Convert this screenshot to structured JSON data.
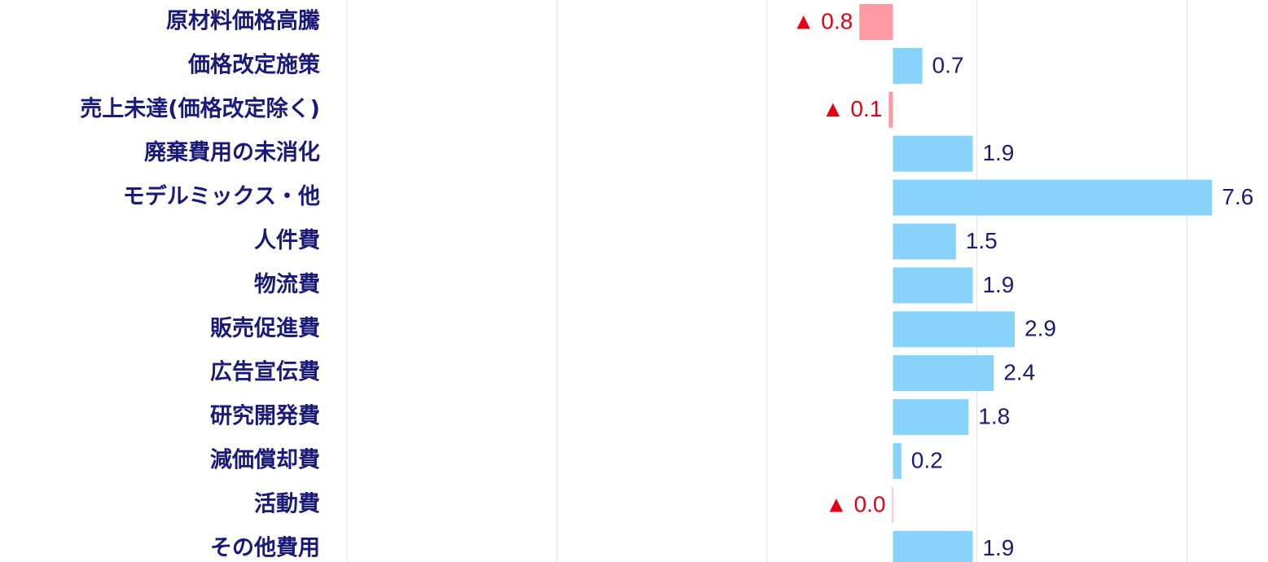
{
  "chart_data": {
    "type": "barh",
    "categories": [
      "原材料価格高騰",
      "価格改定施策",
      "売上未達(価格改定除く)",
      "廃棄費用の未消化",
      "モデルミックス・他",
      "人件費",
      "物流費",
      "販売促進費",
      "広告宣伝費",
      "研究開発費",
      "減価償却費",
      "活動費",
      "その他費用"
    ],
    "values": [
      -0.8,
      0.7,
      -0.1,
      1.9,
      7.6,
      1.5,
      1.9,
      2.9,
      2.4,
      1.8,
      0.2,
      -0.02,
      1.9
    ],
    "value_labels": [
      "▲ 0.8",
      "0.7",
      "▲ 0.1",
      "1.9",
      "7.6",
      "1.5",
      "1.9",
      "2.9",
      "2.4",
      "1.8",
      "0.2",
      "▲ 0.0",
      "1.9"
    ],
    "positive_color": "#87d3fb",
    "negative_color": "#ff99a4",
    "xlim": [
      -13,
      8.93
    ],
    "xticks": [
      -13,
      -8,
      -3,
      2,
      7
    ],
    "grid": true
  }
}
